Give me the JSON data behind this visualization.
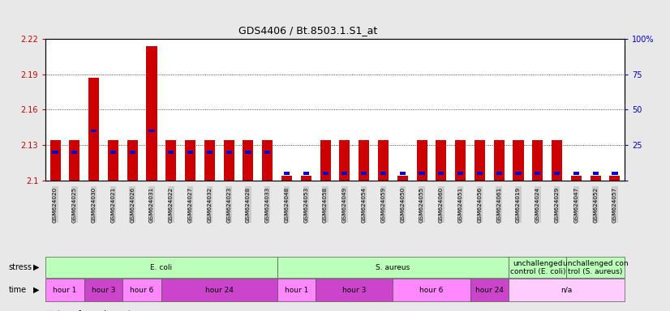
{
  "title": "GDS4406 / Bt.8503.1.S1_at",
  "samples": [
    "GSM624020",
    "GSM624025",
    "GSM624030",
    "GSM624021",
    "GSM624026",
    "GSM624031",
    "GSM624022",
    "GSM624027",
    "GSM624032",
    "GSM624023",
    "GSM624028",
    "GSM624033",
    "GSM624048",
    "GSM624053",
    "GSM624058",
    "GSM624049",
    "GSM624054",
    "GSM624059",
    "GSM624050",
    "GSM624055",
    "GSM624060",
    "GSM624051",
    "GSM624056",
    "GSM624061",
    "GSM624019",
    "GSM624024",
    "GSM624029",
    "GSM624047",
    "GSM624052",
    "GSM624057"
  ],
  "red_values": [
    2.134,
    2.134,
    2.187,
    2.134,
    2.134,
    2.214,
    2.134,
    2.134,
    2.134,
    2.134,
    2.134,
    2.134,
    2.104,
    2.104,
    2.134,
    2.134,
    2.134,
    2.134,
    2.104,
    2.134,
    2.134,
    2.134,
    2.134,
    2.134,
    2.134,
    2.134,
    2.134,
    2.104,
    2.104,
    2.104
  ],
  "blue_values": [
    20,
    20,
    35,
    20,
    20,
    35,
    20,
    20,
    20,
    20,
    20,
    20,
    5,
    5,
    5,
    5,
    5,
    5,
    5,
    5,
    5,
    5,
    5,
    5,
    5,
    5,
    5,
    5,
    5,
    5
  ],
  "ymin": 2.1,
  "ymax": 2.22,
  "yticks_left": [
    2.1,
    2.13,
    2.16,
    2.19,
    2.22
  ],
  "ytick_labels_left": [
    "2.1",
    "2.13",
    "2.16",
    "2.19",
    "2.22"
  ],
  "yticks_right": [
    0,
    25,
    50,
    75,
    100
  ],
  "stress_groups": [
    {
      "label": "E. coli",
      "start": 0,
      "end": 11,
      "color": "#bbffbb"
    },
    {
      "label": "S. aureus",
      "start": 12,
      "end": 23,
      "color": "#bbffbb"
    },
    {
      "label": "unchallenged\ncontrol (E. coli)",
      "start": 24,
      "end": 26,
      "color": "#bbffbb"
    },
    {
      "label": "unchallenged con\ntrol (S. aureus)",
      "start": 27,
      "end": 29,
      "color": "#bbffbb"
    }
  ],
  "time_groups": [
    {
      "label": "hour 1",
      "start": 0,
      "end": 1,
      "color": "#ff88ff"
    },
    {
      "label": "hour 3",
      "start": 2,
      "end": 3,
      "color": "#cc44cc"
    },
    {
      "label": "hour 6",
      "start": 4,
      "end": 5,
      "color": "#ff88ff"
    },
    {
      "label": "hour 24",
      "start": 6,
      "end": 11,
      "color": "#cc44cc"
    },
    {
      "label": "hour 1",
      "start": 12,
      "end": 13,
      "color": "#ff88ff"
    },
    {
      "label": "hour 3",
      "start": 14,
      "end": 17,
      "color": "#cc44cc"
    },
    {
      "label": "hour 6",
      "start": 18,
      "end": 21,
      "color": "#ff88ff"
    },
    {
      "label": "hour 24",
      "start": 22,
      "end": 23,
      "color": "#cc44cc"
    },
    {
      "label": "n/a",
      "start": 24,
      "end": 29,
      "color": "#ffccff"
    }
  ],
  "bar_color": "#cc0000",
  "blue_color": "#0000cc",
  "bg_color": "#e8e8e8",
  "plot_bg": "#ffffff",
  "label_bg": "#cccccc",
  "left_axis_color": "#cc0000",
  "right_axis_color": "#0000cc"
}
